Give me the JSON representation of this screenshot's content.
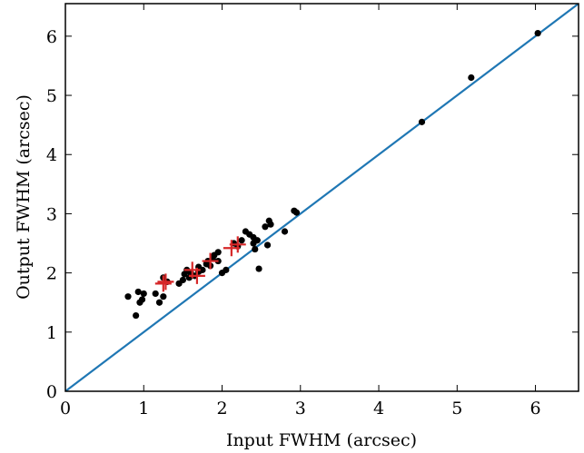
{
  "chart_data": {
    "type": "scatter",
    "title": "",
    "xlabel": "Input FWHM (arcsec)",
    "ylabel": "Output FWHM (arcsec)",
    "xlim": [
      0,
      6.55
    ],
    "ylim": [
      0,
      6.55
    ],
    "xticks": [
      0,
      1,
      2,
      3,
      4,
      5,
      6
    ],
    "yticks": [
      0,
      1,
      2,
      3,
      4,
      5,
      6
    ],
    "grid": false,
    "legend": "none",
    "reference_line": {
      "slope": 1,
      "intercept": 0,
      "color": "#1f77b4"
    },
    "series": [
      {
        "marker": "dot",
        "color": "#000000",
        "points": [
          [
            0.8,
            1.6
          ],
          [
            0.9,
            1.28
          ],
          [
            0.93,
            1.68
          ],
          [
            0.95,
            1.5
          ],
          [
            0.98,
            1.55
          ],
          [
            1.0,
            1.65
          ],
          [
            1.15,
            1.65
          ],
          [
            1.2,
            1.5
          ],
          [
            1.25,
            1.6
          ],
          [
            1.25,
            1.92
          ],
          [
            1.3,
            1.85
          ],
          [
            1.45,
            1.82
          ],
          [
            1.5,
            1.88
          ],
          [
            1.52,
            1.98
          ],
          [
            1.55,
            2.05
          ],
          [
            1.58,
            1.92
          ],
          [
            1.6,
            2.0
          ],
          [
            1.65,
            1.95
          ],
          [
            1.7,
            2.02
          ],
          [
            1.7,
            2.1
          ],
          [
            1.75,
            2.05
          ],
          [
            1.8,
            2.15
          ],
          [
            1.82,
            2.2
          ],
          [
            1.85,
            2.12
          ],
          [
            1.88,
            2.25
          ],
          [
            1.9,
            2.3
          ],
          [
            1.95,
            2.2
          ],
          [
            1.95,
            2.35
          ],
          [
            2.0,
            2.0
          ],
          [
            2.05,
            2.05
          ],
          [
            2.15,
            2.5
          ],
          [
            2.2,
            2.45
          ],
          [
            2.25,
            2.55
          ],
          [
            2.3,
            2.7
          ],
          [
            2.35,
            2.65
          ],
          [
            2.4,
            2.6
          ],
          [
            2.4,
            2.5
          ],
          [
            2.42,
            2.4
          ],
          [
            2.45,
            2.55
          ],
          [
            2.47,
            2.07
          ],
          [
            2.55,
            2.78
          ],
          [
            2.58,
            2.47
          ],
          [
            2.6,
            2.88
          ],
          [
            2.62,
            2.82
          ],
          [
            2.8,
            2.7
          ],
          [
            2.92,
            3.05
          ],
          [
            2.95,
            3.02
          ],
          [
            4.55,
            4.55
          ],
          [
            5.18,
            5.3
          ],
          [
            6.03,
            6.05
          ]
        ]
      },
      {
        "marker": "plus",
        "color": "#d62728",
        "points": [
          [
            1.25,
            1.82
          ],
          [
            1.28,
            1.85
          ],
          [
            1.62,
            2.05
          ],
          [
            1.68,
            1.95
          ],
          [
            1.85,
            2.2
          ],
          [
            2.12,
            2.42
          ],
          [
            2.2,
            2.48
          ]
        ]
      }
    ]
  }
}
